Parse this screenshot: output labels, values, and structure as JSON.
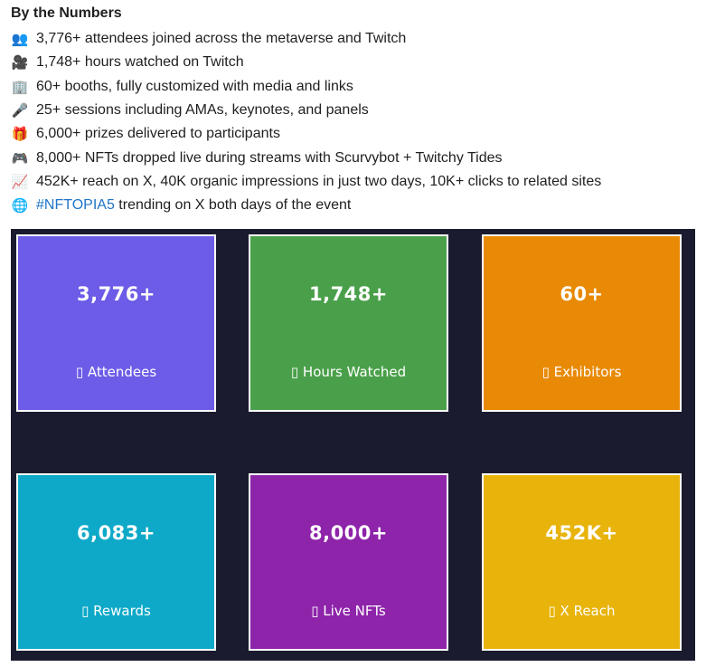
{
  "heading": "By the Numbers",
  "stats_list": [
    {
      "icon": "people-icon",
      "glyph": "👥",
      "text": "3,776+ attendees joined across the metaverse and Twitch"
    },
    {
      "icon": "video-camera-icon",
      "glyph": "🎥",
      "text": "1,748+ hours watched on Twitch"
    },
    {
      "icon": "office-building-icon",
      "glyph": "🏢",
      "text": "60+ booths, fully customized with media and links"
    },
    {
      "icon": "microphone-icon",
      "glyph": "🎤",
      "text": "25+ sessions including AMAs, keynotes, and panels"
    },
    {
      "icon": "gift-icon",
      "glyph": "🎁",
      "text": "6,000+ prizes delivered to participants"
    },
    {
      "icon": "game-controller-icon",
      "glyph": "🎮",
      "text": "8,000+ NFTs dropped live during streams with Scurvybot + Twitchy Tides"
    },
    {
      "icon": "chart-increasing-icon",
      "glyph": "📈",
      "text": "452K+ reach on X, 40K organic impressions in just two days, 10K+ clicks to related sites"
    }
  ],
  "trending": {
    "icon": "globe-icon",
    "glyph": "🌐",
    "hashtag": "#NFTOPIA5",
    "text": " trending on X both days of the event"
  },
  "cards": [
    {
      "value": "3,776+",
      "label": "▯ Attendees",
      "color": "#6c5ce7"
    },
    {
      "value": "1,748+",
      "label": "▯ Hours Watched",
      "color": "#4aa04a"
    },
    {
      "value": "60+",
      "label": "▯ Exhibitors",
      "color": "#e88a05"
    },
    {
      "value": "6,083+",
      "label": "▯ Rewards",
      "color": "#0ea9c8"
    },
    {
      "value": "8,000+",
      "label": "▯ Live NFTs",
      "color": "#8e24aa"
    },
    {
      "value": "452K+",
      "label": "▯ X Reach",
      "color": "#e8b30b"
    }
  ]
}
